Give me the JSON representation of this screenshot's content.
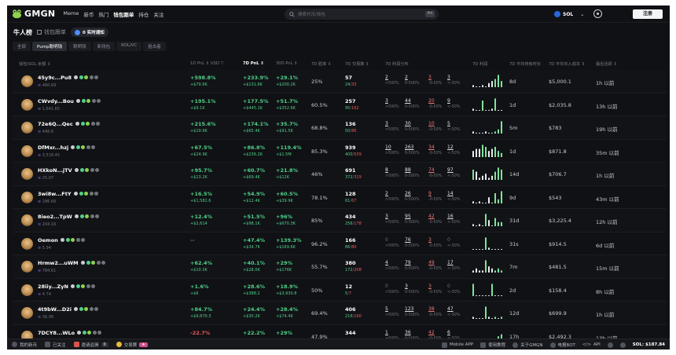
{
  "header": {
    "brand": "GMGN",
    "nav": [
      "Meme",
      "新币",
      "热门",
      "钱包跟单",
      "持仓",
      "关注"
    ],
    "active_nav": 3,
    "search_placeholder": "搜索代币/钱包",
    "search_shortcut": "⌘K",
    "chain_label": "SOL",
    "login_label": "注册"
  },
  "sub": {
    "title": "牛人榜",
    "follow_label": "钱包跟单",
    "notify_label": "0 实时通知"
  },
  "tabs": [
    "全部",
    "Pump聪明钱",
    "聪明钱",
    "新钱包",
    "KOL/VC",
    "狙击者"
  ],
  "active_tab": 1,
  "columns": {
    "wallet": "钱包/SOL 余额 ⇕",
    "pnl1d": "1D PnL ⇕  USD ▽",
    "pnl7d": "7D PnL ⇕",
    "pnl30d": "30D PnL ⇕",
    "wr": "7D 胜率 ⇕",
    "txs": "7D 交易数 ⇕",
    "dist": "7D 利润分布",
    "chart": "7D 利润",
    "hold": "7D 平均持有时长",
    "cost": "7D 平均买入成本 ⇕",
    "last": "最后活跃 ⇕"
  },
  "rows": [
    {
      "name": "45y9c...Pu8",
      "bal": "460.69",
      "p1": "+598.8%",
      "p1s": "+$79.6K",
      "p7": "+233.9%",
      "p7s": "+$131.6K",
      "p30": "+29.1%",
      "p30s": "+$200.2K",
      "wr": "25%",
      "tx": "57",
      "txb": "24",
      "txs": "33",
      "d": [
        "2",
        "2",
        "3",
        "3"
      ],
      "bars": [
        1,
        0,
        0,
        1,
        0,
        2,
        3,
        4,
        6,
        3
      ],
      "hold": "8d",
      "cost": "$5,000.1",
      "last": "1h 以前"
    },
    {
      "name": "CWvdy...Bou",
      "bal": "1,641.65",
      "p1": "+195.1%",
      "p1s": "+$9.1K",
      "p7": "+177.5%",
      "p7s": "+$445.1K",
      "p30": "+51.7%",
      "p30s": "+$352.6K",
      "wr": "60.5%",
      "tx": "257",
      "txb": "95",
      "txs": "162",
      "d": [
        "3",
        "44",
        "20",
        "9"
      ],
      "bars": [
        1,
        0,
        0,
        5,
        0,
        0,
        1,
        6,
        0,
        0
      ],
      "hold": "1d",
      "cost": "$2,035.8",
      "last": "13h 以前"
    },
    {
      "name": "72e6Q...Qec",
      "bal": "446.6",
      "p1": "+215.6%",
      "p1s": "+$19.9K",
      "p7": "+174.1%",
      "p7s": "+$65.4K",
      "p30": "+35.7%",
      "p30s": "+$91.5K",
      "wr": "68.8%",
      "tx": "136",
      "txb": "50",
      "txs": "86",
      "d": [
        "3",
        "30",
        "10",
        "5"
      ],
      "bars": [
        1,
        0,
        0,
        0,
        1,
        0,
        0,
        1,
        2,
        6
      ],
      "hold": "5m",
      "cost": "$783",
      "last": "19h 以前"
    },
    {
      "name": "DfMxr...hzj",
      "bal": "3,518.45",
      "p1": "+67.5%",
      "p1s": "+$24.9K",
      "p7": "+86.8%",
      "p7s": "+$236.2K",
      "p30": "+119.4%",
      "p30s": "+$1.5M",
      "wr": "85.3%",
      "tx": "939",
      "txb": "400",
      "txs": "539",
      "d": [
        "10",
        "263",
        "34",
        "12"
      ],
      "bars": [
        3,
        4,
        4,
        6,
        5,
        3,
        4,
        5,
        3,
        2
      ],
      "hold": "1d",
      "cost": "$871.8",
      "last": "35m 以前"
    },
    {
      "name": "HXkoN...jTV",
      "bal": "25.07",
      "p1": "+95.7%",
      "p1s": "+$13.2K",
      "p7": "+60.7%",
      "p7s": "+$69.4K",
      "p30": "+21.8%",
      "p30s": "+$12K",
      "wr": "46%",
      "tx": "691",
      "txb": "372",
      "txs": "319",
      "d": [
        "8",
        "88",
        "74",
        "97"
      ],
      "bars": [
        5,
        4,
        1,
        2,
        3,
        1,
        2,
        4,
        6,
        5
      ],
      "hold": "14d",
      "cost": "$706.7",
      "last": "1h 以前"
    },
    {
      "name": "3wi8w...FtY",
      "bal": "286.66",
      "p1": "+16.5%",
      "p1s": "+$1,582.6",
      "p7": "+54.9%",
      "p7s": "+$12.4K",
      "p30": "+60.5%",
      "p30s": "+$39.9K",
      "wr": "78.1%",
      "tx": "128",
      "txb": "61",
      "txs": "67",
      "d": [
        "2",
        "26",
        "9",
        "14"
      ],
      "bars": [
        1,
        0,
        1,
        0,
        0,
        3,
        0,
        5,
        2,
        6
      ],
      "hold": "9d",
      "cost": "$543",
      "last": "43m 以前"
    },
    {
      "name": "8ieo2...TpW",
      "bal": "204.16",
      "p1": "+12.4%",
      "p1s": "+$2,614",
      "p7": "+51.5%",
      "p7s": "+$98.1K",
      "p30": "+96%",
      "p30s": "+$670.3K",
      "wr": "85%",
      "tx": "434",
      "txb": "256",
      "txs": "178",
      "d": [
        "3",
        "95",
        "42",
        "16"
      ],
      "bars": [
        1,
        0,
        1,
        0,
        6,
        3,
        0,
        4,
        2,
        2
      ],
      "hold": "31d",
      "cost": "$3,225.4",
      "last": "12h 以前"
    },
    {
      "name": "Oemon",
      "bal": "5.94",
      "p1": "--",
      "p1s": "",
      "p7": "+47.4%",
      "p7s": "+$34.7K",
      "p30": "+139.3%",
      "p30s": "+$169.6K",
      "wr": "96.2%",
      "tx": "166",
      "txb": "86",
      "txs": "80",
      "d": [
        "0",
        "76",
        "3",
        "0"
      ],
      "bars": [
        0,
        0,
        0,
        0,
        6,
        1,
        0,
        0,
        0,
        0
      ],
      "hold": "31s",
      "cost": "$914.5",
      "last": "6d 以前"
    },
    {
      "name": "Hrmw2...uWM",
      "bal": "784.61",
      "p1": "+62.4%",
      "p1s": "+$10.3K",
      "p7": "+40.1%",
      "p7s": "+$28.0K",
      "p30": "+29%",
      "p30s": "+$176K",
      "wr": "55.7%",
      "tx": "380",
      "txb": "172",
      "txs": "208",
      "d": [
        "4",
        "79",
        "49",
        "17"
      ],
      "bars": [
        1,
        2,
        1,
        1,
        6,
        3,
        2,
        1,
        2,
        1
      ],
      "hold": "7m",
      "cost": "$481.5",
      "last": "15m 以前"
    },
    {
      "name": "28iiy...ZyN",
      "bal": "4.74",
      "p1": "+1.6%",
      "p1s": "+$6",
      "p7": "+28.6%",
      "p7s": "+$388.2",
      "p30": "+18.9%",
      "p30s": "+$3,930.8",
      "wr": "50%",
      "tx": "12",
      "txb": "5",
      "txs": "7",
      "d": [
        "0",
        "3",
        "3",
        "0"
      ],
      "bars": [
        6,
        0,
        0,
        0,
        0,
        0,
        6,
        0,
        0,
        0
      ],
      "hold": "2d",
      "cost": "$158.4",
      "last": "8h 以前"
    },
    {
      "name": "4t9bW...D2i",
      "bal": "36.06",
      "p1": "+84.7%",
      "p1s": "+$9,870.3",
      "p7": "+24.4%",
      "p7s": "+$30.2K",
      "p30": "+28.4%",
      "p30s": "+$74.4K",
      "wr": "69.4%",
      "tx": "406",
      "txb": "216",
      "txs": "190",
      "d": [
        "5",
        "123",
        "38",
        "47"
      ],
      "bars": [
        1,
        0,
        0,
        0,
        6,
        1,
        0,
        1,
        0,
        1
      ],
      "hold": "12d",
      "cost": "$699.9",
      "last": "1h 以前"
    },
    {
      "name": "7DCY8...WLo",
      "bal": "",
      "p1": "-22.7%",
      "p1s": "",
      "p7": "+22.2%",
      "p7s": "",
      "p30": "+29%",
      "p30s": "",
      "wr": "47.9%",
      "tx": "344",
      "txb": "",
      "txs": "",
      "d": [
        "1",
        "36",
        "42",
        "6"
      ],
      "bars": [
        0,
        0,
        0,
        0,
        0,
        0,
        0,
        0,
        3,
        4
      ],
      "hold": "17h",
      "cost": "$2,492.3",
      "last": "13h 以前"
    }
  ],
  "dist_labels": [
    ">500%",
    "0-500%",
    "-0-50%",
    "<-50%"
  ],
  "footer": {
    "items": [
      "我的新币",
      "已关注",
      "邀请返佣",
      "交易赛"
    ],
    "invite_count": "0",
    "right": [
      "Mobile APP",
      "使用教程",
      "关于GMGN",
      "电报BOT",
      "API"
    ],
    "sol_price": "SOL: $187.84"
  },
  "colors": {
    "up": "#4fd18a",
    "down": "#ef5a5a",
    "bg": "#101114",
    "spark_pos": "#7fe39a",
    "spark_neg": "#e9ecf0"
  }
}
